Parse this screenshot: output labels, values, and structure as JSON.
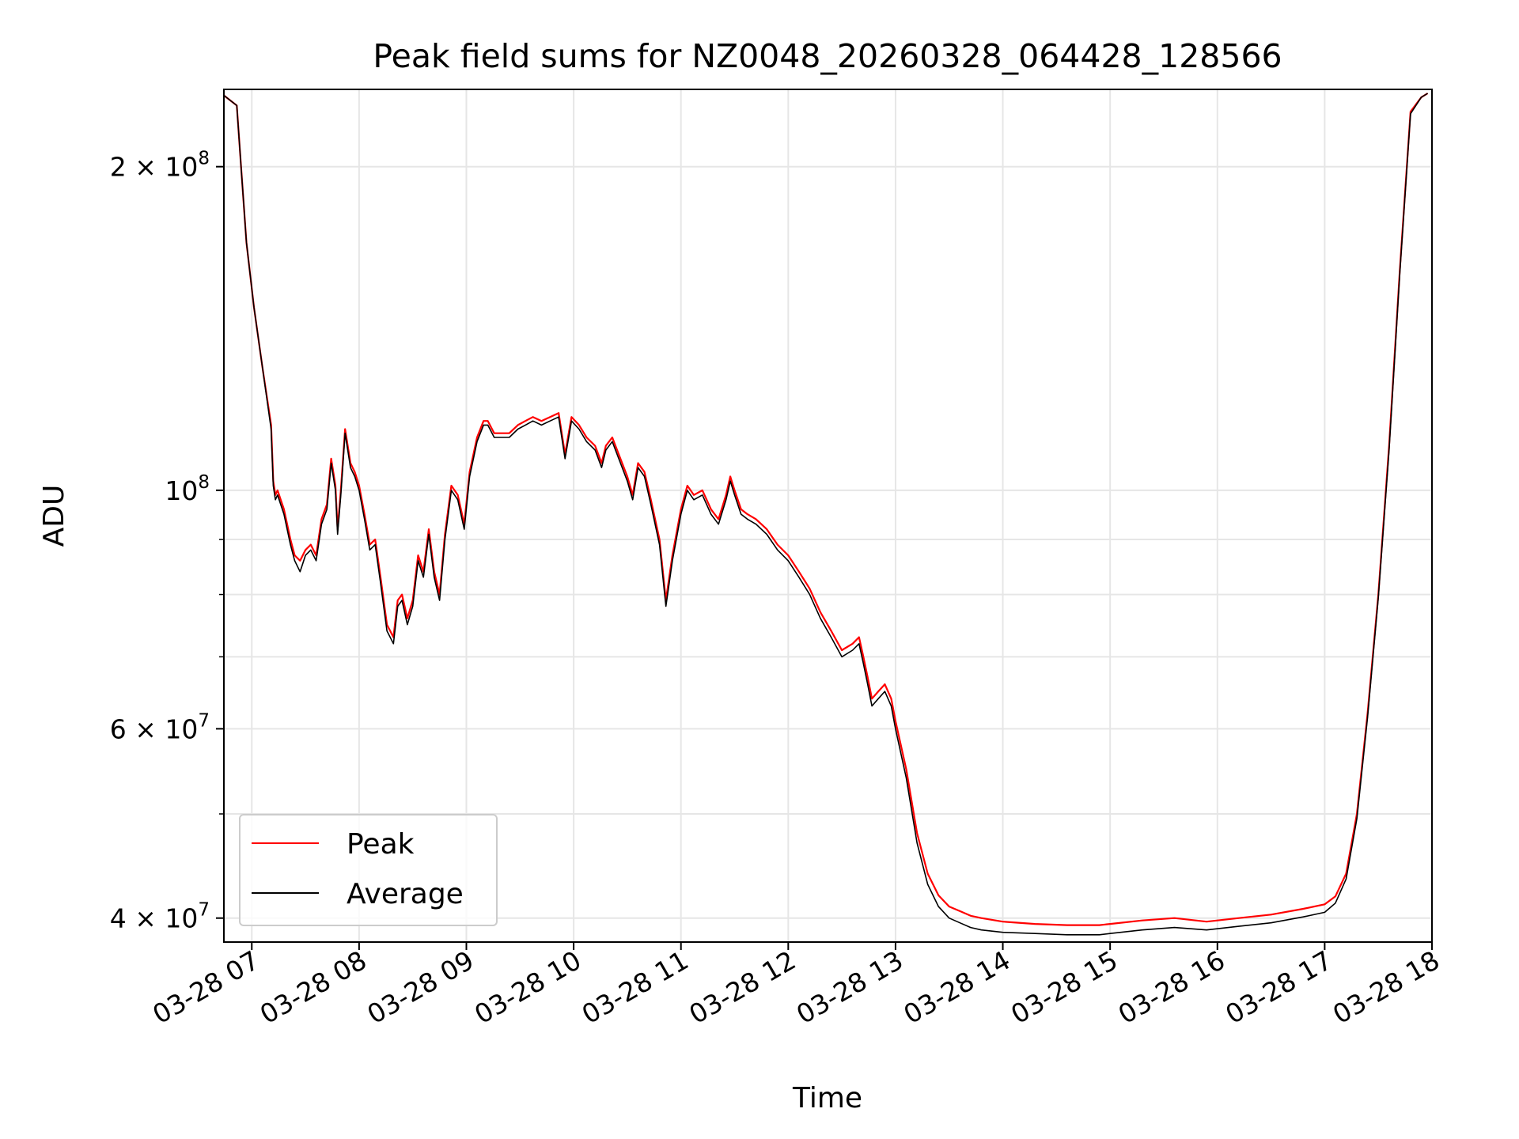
{
  "chart_data": {
    "type": "line",
    "title": "Peak field sums for NZ0048_20260328_064428_128566",
    "xlabel": "Time",
    "ylabel": "ADU",
    "yscale": "log",
    "grid": true,
    "legend_location": "lower-left",
    "xlim": [
      6.74,
      18.0
    ],
    "ylim": [
      38000000,
      236000000
    ],
    "x_unit": "hours (2026-03-28)",
    "x_ticks": [
      {
        "value": 7,
        "label": "03-28 07"
      },
      {
        "value": 8,
        "label": "03-28 08"
      },
      {
        "value": 9,
        "label": "03-28 09"
      },
      {
        "value": 10,
        "label": "03-28 10"
      },
      {
        "value": 11,
        "label": "03-28 11"
      },
      {
        "value": 12,
        "label": "03-28 12"
      },
      {
        "value": 13,
        "label": "03-28 13"
      },
      {
        "value": 14,
        "label": "03-28 14"
      },
      {
        "value": 15,
        "label": "03-28 15"
      },
      {
        "value": 16,
        "label": "03-28 16"
      },
      {
        "value": 17,
        "label": "03-28 17"
      },
      {
        "value": 18,
        "label": "03-28 18"
      }
    ],
    "y_major_ticks": [
      {
        "value": 40000000,
        "mant": "4 × 10",
        "exp": "7"
      },
      {
        "value": 60000000,
        "mant": "6 × 10",
        "exp": "7"
      },
      {
        "value": 100000000,
        "mant": "10",
        "exp": "8"
      },
      {
        "value": 200000000,
        "mant": "2 × 10",
        "exp": "8"
      }
    ],
    "y_minor_gridlines": [
      50000000,
      70000000,
      80000000,
      90000000
    ],
    "series": [
      {
        "name": "Peak",
        "color": "#ff0000",
        "x": [
          6.74,
          6.86,
          6.9,
          6.95,
          7.02,
          7.1,
          7.18,
          7.2,
          7.22,
          7.24,
          7.3,
          7.36,
          7.4,
          7.45,
          7.5,
          7.55,
          7.6,
          7.65,
          7.7,
          7.74,
          7.78,
          7.8,
          7.83,
          7.87,
          7.92,
          7.96,
          8.0,
          8.05,
          8.1,
          8.15,
          8.2,
          8.26,
          8.32,
          8.36,
          8.4,
          8.45,
          8.5,
          8.55,
          8.6,
          8.65,
          8.7,
          8.75,
          8.8,
          8.86,
          8.92,
          8.98,
          9.03,
          9.1,
          9.16,
          9.2,
          9.26,
          9.32,
          9.4,
          9.48,
          9.55,
          9.62,
          9.7,
          9.78,
          9.86,
          9.92,
          9.98,
          10.05,
          10.12,
          10.2,
          10.26,
          10.3,
          10.36,
          10.42,
          10.5,
          10.55,
          10.6,
          10.66,
          10.72,
          10.8,
          10.86,
          10.92,
          11.0,
          11.06,
          11.12,
          11.2,
          11.28,
          11.35,
          11.42,
          11.46,
          11.5,
          11.56,
          11.62,
          11.7,
          11.8,
          11.9,
          12.0,
          12.1,
          12.2,
          12.3,
          12.4,
          12.5,
          12.6,
          12.66,
          12.7,
          12.74,
          12.78,
          12.84,
          12.9,
          12.96,
          13.0,
          13.1,
          13.2,
          13.3,
          13.4,
          13.5,
          13.6,
          13.7,
          13.8,
          14.0,
          14.3,
          14.6,
          14.9,
          15.0,
          15.3,
          15.6,
          15.9,
          16.2,
          16.5,
          16.8,
          17.0,
          17.1,
          17.2,
          17.3,
          17.4,
          17.5,
          17.6,
          17.7,
          17.8,
          17.9,
          17.96
        ],
        "y": [
          233000000,
          228000000,
          200000000,
          170000000,
          148000000,
          130000000,
          115000000,
          102000000,
          99000000,
          100000000,
          96000000,
          90000000,
          87000000,
          86000000,
          88000000,
          89000000,
          87000000,
          94000000,
          97000000,
          107000000,
          101000000,
          92000000,
          100000000,
          114000000,
          106000000,
          104000000,
          101000000,
          95000000,
          89000000,
          90000000,
          83000000,
          75000000,
          73000000,
          79000000,
          80000000,
          76000000,
          79000000,
          87000000,
          84000000,
          92000000,
          84000000,
          80000000,
          91000000,
          101000000,
          99000000,
          93000000,
          104000000,
          112000000,
          116000000,
          116000000,
          113000000,
          113000000,
          113000000,
          115000000,
          116000000,
          117000000,
          116000000,
          117000000,
          118000000,
          108000000,
          117000000,
          115000000,
          112000000,
          110000000,
          106000000,
          110000000,
          112000000,
          108000000,
          103000000,
          99000000,
          106000000,
          104000000,
          98000000,
          90000000,
          79000000,
          87000000,
          96000000,
          101000000,
          99000000,
          100000000,
          96000000,
          94000000,
          99000000,
          103000000,
          100000000,
          96000000,
          95000000,
          94000000,
          92000000,
          89000000,
          87000000,
          84000000,
          81000000,
          77000000,
          74000000,
          71000000,
          72000000,
          73000000,
          70000000,
          67000000,
          64000000,
          65000000,
          66000000,
          64000000,
          61000000,
          55000000,
          48000000,
          44000000,
          42000000,
          41000000,
          40600000,
          40200000,
          40000000,
          39700000,
          39500000,
          39400000,
          39400000,
          39500000,
          39800000,
          40000000,
          39700000,
          40000000,
          40300000,
          40800000,
          41200000,
          41900000,
          44000000,
          50000000,
          62000000,
          80000000,
          110000000,
          160000000,
          225000000,
          232000000,
          234000000
        ]
      },
      {
        "name": "Average",
        "color": "#000000",
        "x": [
          6.74,
          6.86,
          6.9,
          6.95,
          7.02,
          7.1,
          7.18,
          7.2,
          7.22,
          7.24,
          7.3,
          7.36,
          7.4,
          7.45,
          7.5,
          7.55,
          7.6,
          7.65,
          7.7,
          7.74,
          7.78,
          7.8,
          7.83,
          7.87,
          7.92,
          7.96,
          8.0,
          8.05,
          8.1,
          8.15,
          8.2,
          8.26,
          8.32,
          8.36,
          8.4,
          8.45,
          8.5,
          8.55,
          8.6,
          8.65,
          8.7,
          8.75,
          8.8,
          8.86,
          8.92,
          8.98,
          9.03,
          9.1,
          9.16,
          9.2,
          9.26,
          9.32,
          9.4,
          9.48,
          9.55,
          9.62,
          9.7,
          9.78,
          9.86,
          9.92,
          9.98,
          10.05,
          10.12,
          10.2,
          10.26,
          10.3,
          10.36,
          10.42,
          10.5,
          10.55,
          10.6,
          10.66,
          10.72,
          10.8,
          10.86,
          10.92,
          11.0,
          11.06,
          11.12,
          11.2,
          11.28,
          11.35,
          11.42,
          11.46,
          11.5,
          11.56,
          11.62,
          11.7,
          11.8,
          11.9,
          12.0,
          12.1,
          12.2,
          12.3,
          12.4,
          12.5,
          12.6,
          12.66,
          12.7,
          12.74,
          12.78,
          12.84,
          12.9,
          12.96,
          13.0,
          13.1,
          13.2,
          13.3,
          13.4,
          13.5,
          13.6,
          13.7,
          13.8,
          14.0,
          14.3,
          14.6,
          14.9,
          15.0,
          15.3,
          15.6,
          15.9,
          16.2,
          16.5,
          16.8,
          17.0,
          17.1,
          17.2,
          17.3,
          17.4,
          17.5,
          17.6,
          17.7,
          17.8,
          17.9,
          17.96
        ],
        "y": [
          233000000,
          228000000,
          200000000,
          170000000,
          148000000,
          130000000,
          114000000,
          101000000,
          98000000,
          99000000,
          95000000,
          89000000,
          86000000,
          84000000,
          87000000,
          88000000,
          86000000,
          93000000,
          96000000,
          106000000,
          100000000,
          91000000,
          99000000,
          113000000,
          105000000,
          103000000,
          100000000,
          94000000,
          88000000,
          89000000,
          82000000,
          74000000,
          72000000,
          78000000,
          79000000,
          75000000,
          78000000,
          86000000,
          83000000,
          91000000,
          83000000,
          79000000,
          90000000,
          100000000,
          98000000,
          92000000,
          103000000,
          111000000,
          115000000,
          115000000,
          112000000,
          112000000,
          112000000,
          114000000,
          115000000,
          116000000,
          115000000,
          116000000,
          117000000,
          107000000,
          116000000,
          114000000,
          111000000,
          109000000,
          105000000,
          109000000,
          111000000,
          107000000,
          102000000,
          98000000,
          105000000,
          103000000,
          97000000,
          89000000,
          78000000,
          86000000,
          95000000,
          100000000,
          98000000,
          99000000,
          95000000,
          93000000,
          98000000,
          102000000,
          99000000,
          95000000,
          94000000,
          93000000,
          91000000,
          88000000,
          86000000,
          83000000,
          80000000,
          76000000,
          73000000,
          70000000,
          71000000,
          72000000,
          69000000,
          66000000,
          63000000,
          64000000,
          65000000,
          63000000,
          60000000,
          54000000,
          47000000,
          43000000,
          41000000,
          40000000,
          39600000,
          39200000,
          39000000,
          38800000,
          38700000,
          38600000,
          38600000,
          38700000,
          39000000,
          39200000,
          39000000,
          39300000,
          39600000,
          40100000,
          40500000,
          41300000,
          43500000,
          49500000,
          61500000,
          79500000,
          109000000,
          159000000,
          224000000,
          232000000,
          234000000
        ]
      }
    ]
  }
}
